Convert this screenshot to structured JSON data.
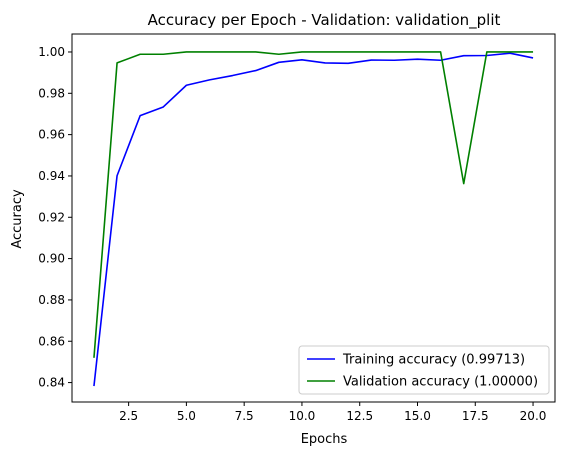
{
  "chart_data": {
    "type": "line",
    "title": "Accuracy per Epoch - Validation: validation_plit",
    "xlabel": "Epochs",
    "ylabel": "Accuracy",
    "xlim": [
      0.05,
      20.95
    ],
    "ylim": [
      0.8306,
      1.0087
    ],
    "xticks": [
      2.5,
      5.0,
      7.5,
      10.0,
      12.5,
      15.0,
      17.5,
      20.0
    ],
    "xtick_labels": [
      "2.5",
      "5.0",
      "7.5",
      "10.0",
      "12.5",
      "15.0",
      "17.5",
      "20.0"
    ],
    "yticks": [
      0.84,
      0.86,
      0.88,
      0.9,
      0.92,
      0.94,
      0.96,
      0.98,
      1.0
    ],
    "ytick_labels": [
      "0.84",
      "0.86",
      "0.88",
      "0.90",
      "0.92",
      "0.94",
      "0.96",
      "0.98",
      "1.00"
    ],
    "x": [
      1,
      2,
      3,
      4,
      5,
      6,
      7,
      8,
      9,
      10,
      11,
      12,
      13,
      14,
      15,
      16,
      17,
      18,
      19,
      20
    ],
    "series": [
      {
        "name": "Training accuracy (0.99713)",
        "color": "#0000ff",
        "values": [
          0.8383,
          0.9401,
          0.9692,
          0.9734,
          0.9839,
          0.9865,
          0.9886,
          0.991,
          0.995,
          0.9962,
          0.9947,
          0.9945,
          0.9961,
          0.996,
          0.9965,
          0.996,
          0.9982,
          0.9983,
          0.9994,
          0.9971
        ]
      },
      {
        "name": "Validation accuracy (1.00000)",
        "color": "#008000",
        "values": [
          0.852,
          0.9947,
          0.9989,
          0.9989,
          1.0,
          1.0,
          1.0,
          1.0,
          0.9989,
          1.0,
          1.0,
          1.0,
          1.0,
          1.0,
          1.0,
          1.0,
          0.9363,
          1.0,
          1.0,
          1.0
        ]
      }
    ],
    "legend_position": "lower-right"
  }
}
